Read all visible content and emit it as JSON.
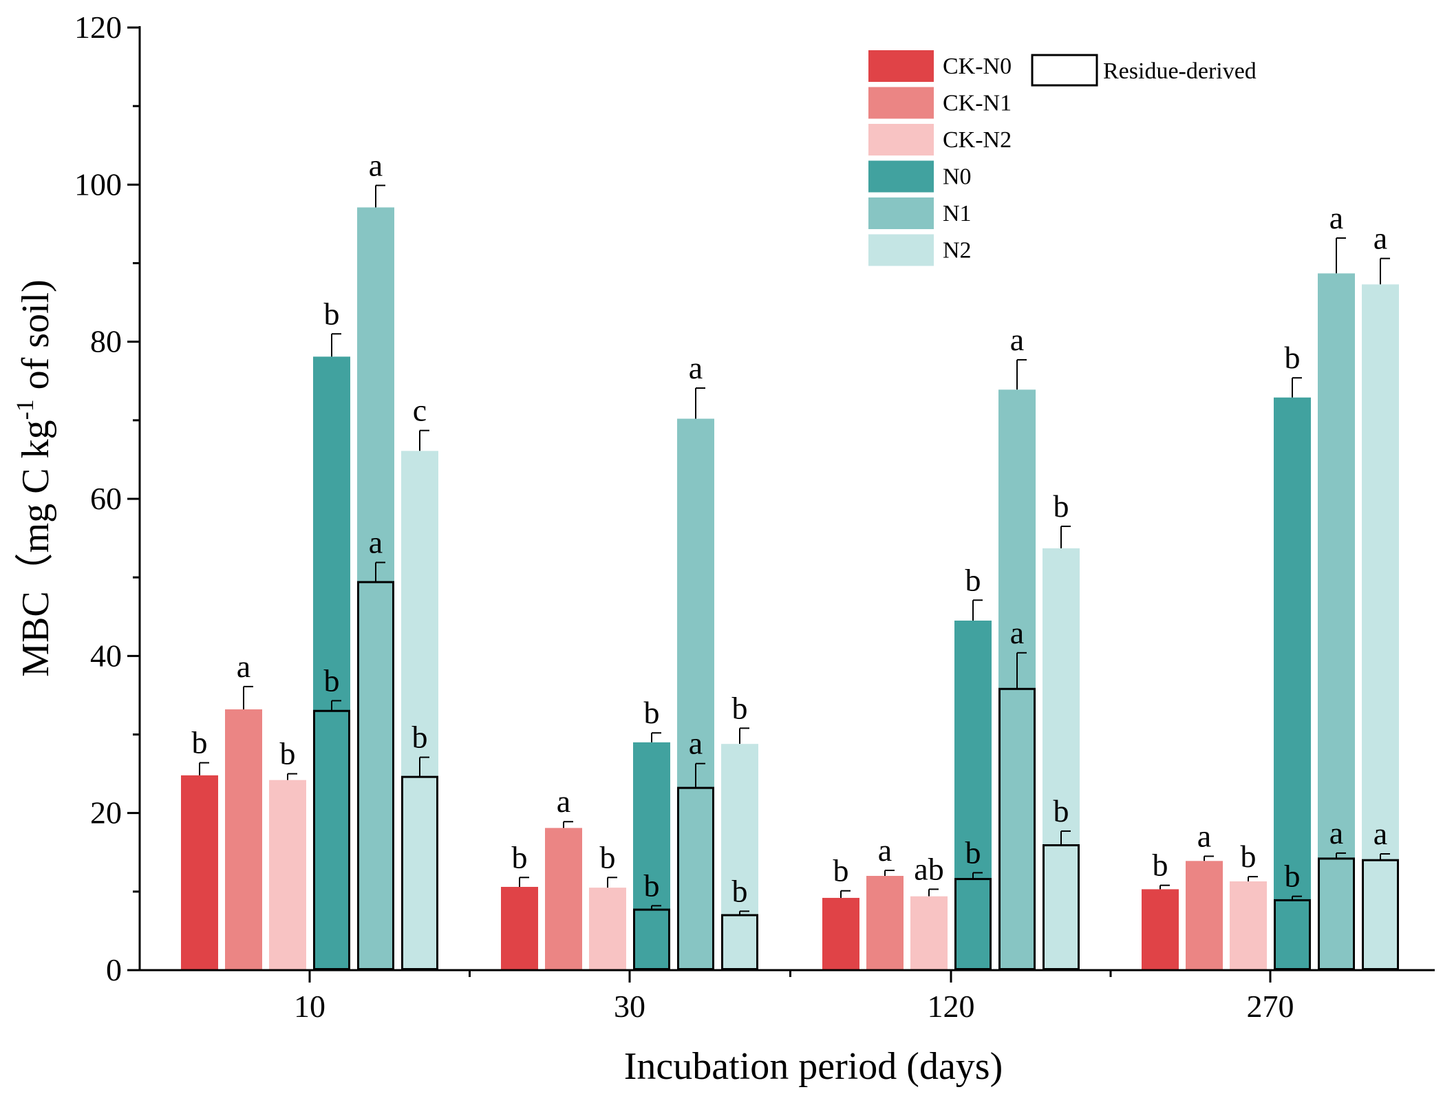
{
  "chart_data": {
    "type": "bar",
    "title": "",
    "xlabel": "Incubation period (days)",
    "ylabel": {
      "base": "MBC（mg C kg",
      "sup": "-1",
      "tail": " of soil)"
    },
    "ylim": [
      0,
      120
    ],
    "yticks": [
      "0",
      "20",
      "40",
      "60",
      "80",
      "100",
      "120"
    ],
    "categories": [
      "10",
      "30",
      "120",
      "270"
    ],
    "legend_position": "top-right",
    "series": [
      {
        "name": "CK-N0",
        "color": "#e04347",
        "values": [
          24.8,
          10.6,
          9.2,
          10.3
        ],
        "errors": [
          1.6,
          1.2,
          0.9,
          0.5
        ],
        "letters": [
          "b",
          "b",
          "b",
          "b"
        ]
      },
      {
        "name": "CK-N1",
        "color": "#eb8584",
        "values": [
          33.2,
          18.1,
          12.0,
          13.9
        ],
        "errors": [
          2.9,
          0.8,
          0.7,
          0.6
        ],
        "letters": [
          "a",
          "a",
          "a",
          "a"
        ]
      },
      {
        "name": "CK-N2",
        "color": "#f8c3c3",
        "values": [
          24.2,
          10.5,
          9.4,
          11.3
        ],
        "errors": [
          0.8,
          1.3,
          0.9,
          0.6
        ],
        "letters": [
          "b",
          "b",
          "ab",
          "b"
        ]
      },
      {
        "name": "N0",
        "color": "#41a29f",
        "values": [
          78.1,
          29.0,
          44.5,
          72.9
        ],
        "errors": [
          2.9,
          1.2,
          2.6,
          2.5
        ],
        "letters": [
          "b",
          "b",
          "b",
          "b"
        ]
      },
      {
        "name": "N1",
        "color": "#87c5c3",
        "values": [
          97.1,
          70.2,
          73.9,
          88.7
        ],
        "errors": [
          2.8,
          3.9,
          3.8,
          4.5
        ],
        "letters": [
          "a",
          "a",
          "a",
          "a"
        ]
      },
      {
        "name": "N2",
        "color": "#c4e5e4",
        "values": [
          66.1,
          28.8,
          53.7,
          87.3
        ],
        "errors": [
          2.6,
          2.0,
          2.8,
          3.3
        ],
        "letters": [
          "c",
          "b",
          "b",
          "a"
        ]
      }
    ],
    "residue_legend": "Residue-derived",
    "residue_derived": {
      "N0": {
        "values": [
          33.0,
          7.7,
          11.6,
          8.9
        ],
        "errors": [
          1.3,
          0.5,
          0.8,
          0.5
        ],
        "letters": [
          "b",
          "b",
          "b",
          "b"
        ]
      },
      "N1": {
        "values": [
          49.4,
          23.2,
          35.8,
          14.2
        ],
        "errors": [
          2.5,
          3.1,
          4.6,
          0.7
        ],
        "letters": [
          "a",
          "a",
          "a",
          "a"
        ]
      },
      "N2": {
        "values": [
          24.6,
          7.0,
          15.9,
          14.0
        ],
        "errors": [
          2.5,
          0.5,
          1.8,
          0.8
        ],
        "letters": [
          "b",
          "b",
          "b",
          "a"
        ]
      }
    }
  }
}
